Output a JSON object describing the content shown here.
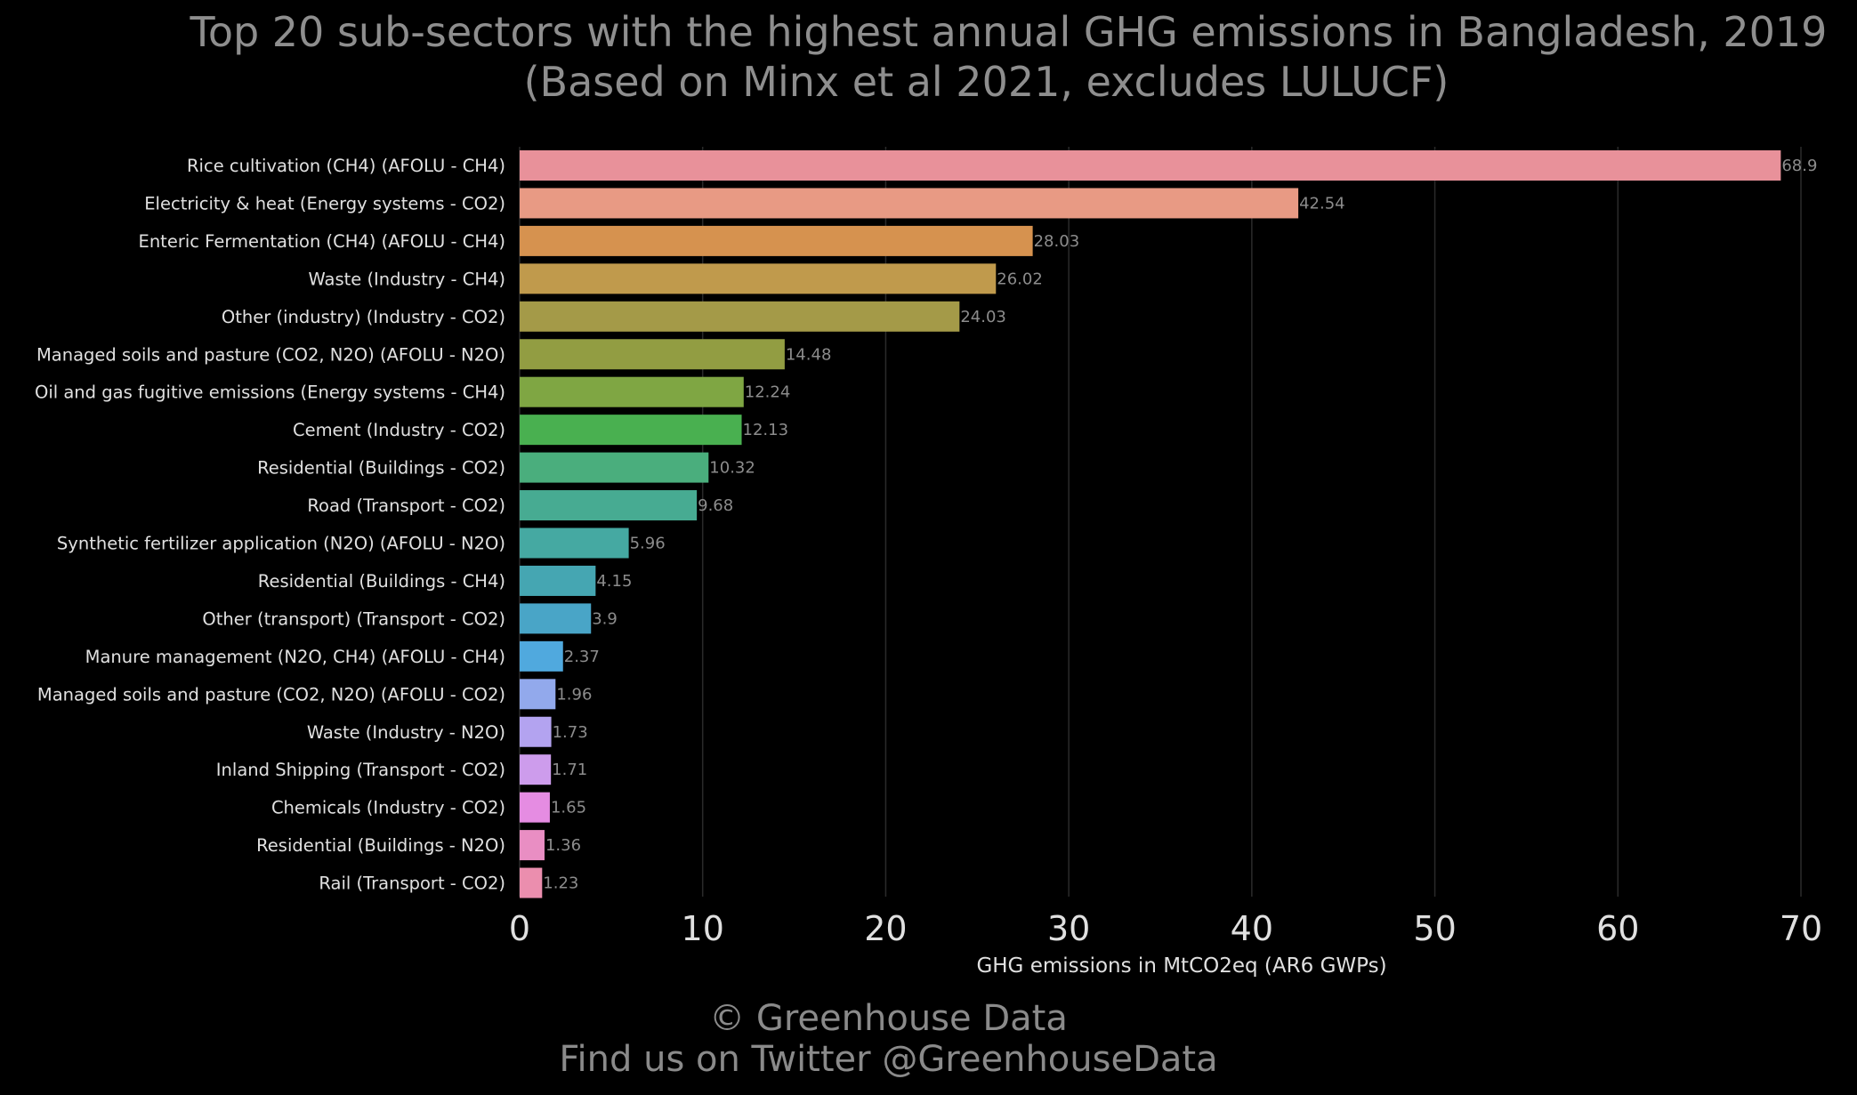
{
  "title": {
    "line1": "Top 20 sub-sectors with the highest annual GHG emissions in Bangladesh, 2019",
    "line2": "(Based on Minx et al 2021, excludes LULUCF)"
  },
  "footer": {
    "line1": "© Greenhouse Data",
    "line2": "Find us on Twitter @GreenhouseData"
  },
  "chart_data": {
    "type": "bar",
    "orientation": "horizontal",
    "title": "Top 20 sub-sectors with the highest annual GHG emissions in Bangladesh, 2019",
    "subtitle": "(Based on Minx et al 2021, excludes LULUCF)",
    "xlabel": "GHG emissions in MtCO2eq (AR6 GWPs)",
    "ylabel": "",
    "xlim": [
      0,
      70
    ],
    "xticks": [
      0,
      10,
      20,
      30,
      40,
      50,
      60,
      70
    ],
    "grid": "vertical",
    "categories": [
      "Rice cultivation (CH4) (AFOLU - CH4)",
      "Electricity & heat (Energy systems - CO2)",
      "Enteric Fermentation (CH4) (AFOLU - CH4)",
      "Waste (Industry - CH4)",
      "Other (industry) (Industry - CO2)",
      "Managed soils and pasture (CO2, N2O) (AFOLU - N2O)",
      "Oil and gas fugitive emissions (Energy systems - CH4)",
      "Cement (Industry - CO2)",
      "Residential (Buildings - CO2)",
      "Road (Transport - CO2)",
      "Synthetic fertilizer application (N2O) (AFOLU - N2O)",
      "Residential (Buildings - CH4)",
      "Other (transport) (Transport - CO2)",
      "Manure management (N2O, CH4) (AFOLU - CH4)",
      "Managed soils and pasture (CO2, N2O) (AFOLU - CO2)",
      "Waste (Industry - N2O)",
      "Inland Shipping (Transport - CO2)",
      "Chemicals (Industry - CO2)",
      "Residential (Buildings - N2O)",
      "Rail  (Transport - CO2)"
    ],
    "values": [
      68.9,
      42.54,
      28.03,
      26.02,
      24.03,
      14.48,
      12.24,
      12.13,
      10.32,
      9.68,
      5.96,
      4.15,
      3.9,
      2.37,
      1.96,
      1.73,
      1.71,
      1.65,
      1.36,
      1.23
    ],
    "value_labels": [
      "68.9",
      "42.54",
      "28.03",
      "26.02",
      "24.03",
      "14.48",
      "12.24",
      "12.13",
      "10.32",
      "9.68",
      "5.96",
      "4.15",
      "3.9",
      "2.37",
      "1.96",
      "1.73",
      "1.71",
      "1.65",
      "1.36",
      "1.23"
    ],
    "colors": [
      "#e8919a",
      "#e89a84",
      "#d6924f",
      "#c09a4c",
      "#a49a48",
      "#929d42",
      "#7fa643",
      "#49b050",
      "#4aae7d",
      "#47ab92",
      "#45a9a2",
      "#45a6b2",
      "#49a5c7",
      "#50a9de",
      "#92a9ec",
      "#b3a3f0",
      "#cd9cec",
      "#e58ce2",
      "#e98ec3",
      "#eb8eae"
    ],
    "background": "#000000",
    "text_color": "#e0e0e0",
    "value_label_color": "#8c8c8c",
    "grid_color": "#2a2a2a"
  }
}
